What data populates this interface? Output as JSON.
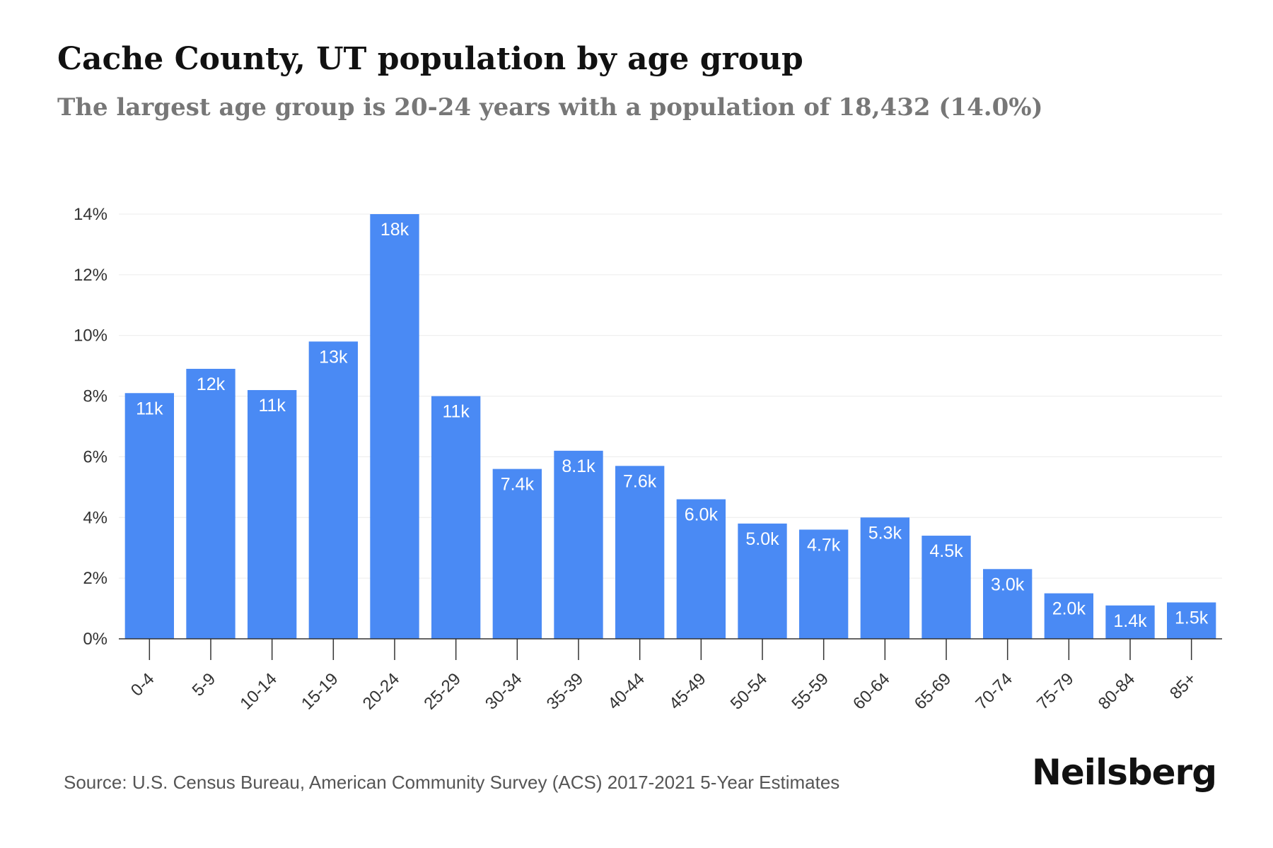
{
  "chart_data": {
    "type": "bar",
    "title": "Cache County, UT population by age group",
    "subtitle": "The largest age group is 20-24 years with a population of 18,432 (14.0%)",
    "categories": [
      "0-4",
      "5-9",
      "10-14",
      "15-19",
      "20-24",
      "25-29",
      "30-34",
      "35-39",
      "40-44",
      "45-49",
      "50-54",
      "55-59",
      "60-64",
      "65-69",
      "70-74",
      "75-79",
      "80-84",
      "85+"
    ],
    "values": [
      8.1,
      8.9,
      8.2,
      9.8,
      14.0,
      8.0,
      5.6,
      6.2,
      5.7,
      4.6,
      3.8,
      3.6,
      4.0,
      3.4,
      2.3,
      1.5,
      1.1,
      1.2
    ],
    "data_labels": [
      "11k",
      "12k",
      "11k",
      "13k",
      "18k",
      "11k",
      "7.4k",
      "8.1k",
      "7.6k",
      "6.0k",
      "5.0k",
      "4.7k",
      "5.3k",
      "4.5k",
      "3.0k",
      "2.0k",
      "1.4k",
      "1.5k"
    ],
    "yticks": [
      0,
      2,
      4,
      6,
      8,
      10,
      12,
      14
    ],
    "ytick_labels": [
      "0%",
      "2%",
      "4%",
      "6%",
      "8%",
      "10%",
      "12%",
      "14%"
    ],
    "ylim": [
      0,
      14
    ],
    "xlabel": "",
    "ylabel": "",
    "grid": true,
    "bar_color": "#4a8af4"
  },
  "footer": {
    "source": "Source: U.S. Census Bureau, American Community Survey (ACS) 2017-2021 5-Year Estimates",
    "brand": "Neilsberg"
  }
}
